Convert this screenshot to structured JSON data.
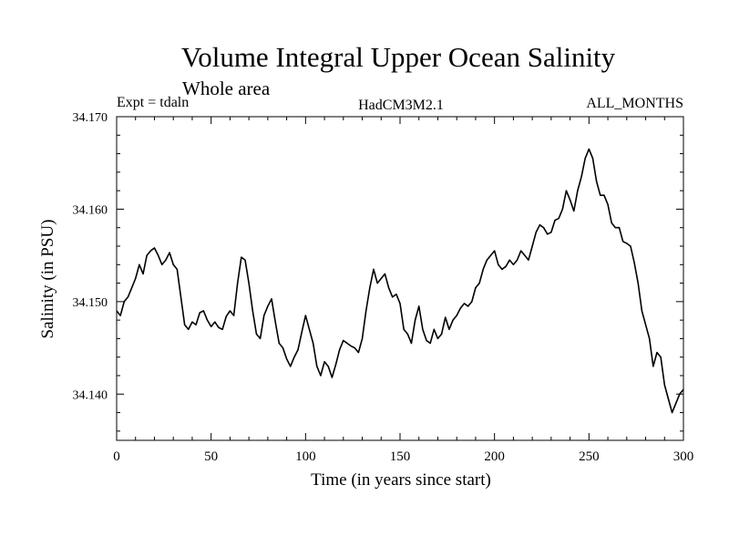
{
  "chart_data": {
    "type": "line",
    "title": "Volume Integral Upper Ocean Salinity",
    "subtitle": "Whole area",
    "header_left": "Expt = tdaln",
    "header_center": "HadCM3M2.1",
    "header_right": "ALL_MONTHS",
    "xlabel": "Time (in years since start)",
    "ylabel": "Salinity (in PSU)",
    "xlim": [
      0,
      300
    ],
    "ylim": [
      34.135,
      34.17
    ],
    "xticks_major": [
      0,
      50,
      100,
      150,
      200,
      250,
      300
    ],
    "xtick_labels": [
      "0",
      "50",
      "100",
      "150",
      "200",
      "250",
      "300"
    ],
    "yticks_major": [
      34.14,
      34.15,
      34.16,
      34.17
    ],
    "ytick_labels": [
      "34.140",
      "34.150",
      "34.160",
      "34.170"
    ],
    "grid": false,
    "series": [
      {
        "name": "Salinity",
        "x": [
          0,
          2,
          4,
          6,
          8,
          10,
          12,
          14,
          16,
          18,
          20,
          22,
          24,
          26,
          28,
          30,
          32,
          34,
          36,
          38,
          40,
          42,
          44,
          46,
          48,
          50,
          52,
          54,
          56,
          58,
          60,
          62,
          64,
          66,
          68,
          70,
          72,
          74,
          76,
          78,
          80,
          82,
          84,
          86,
          88,
          90,
          92,
          94,
          96,
          98,
          100,
          102,
          104,
          106,
          108,
          110,
          112,
          114,
          116,
          118,
          120,
          122,
          124,
          126,
          128,
          130,
          132,
          134,
          136,
          138,
          140,
          142,
          144,
          146,
          148,
          150,
          152,
          154,
          156,
          158,
          160,
          162,
          164,
          166,
          168,
          170,
          172,
          174,
          176,
          178,
          180,
          182,
          184,
          186,
          188,
          190,
          192,
          194,
          196,
          198,
          200,
          202,
          204,
          206,
          208,
          210,
          212,
          214,
          216,
          218,
          220,
          222,
          224,
          226,
          228,
          230,
          232,
          234,
          236,
          238,
          240,
          242,
          244,
          246,
          248,
          250,
          252,
          254,
          256,
          258,
          260,
          262,
          264,
          266,
          268,
          270,
          272,
          274,
          276,
          278,
          280,
          282,
          284,
          286,
          288,
          290,
          292,
          294,
          296,
          298,
          300
        ],
        "values": [
          34.149,
          34.1485,
          34.15,
          34.1505,
          34.1515,
          34.1525,
          34.154,
          34.153,
          34.155,
          34.1555,
          34.1558,
          34.155,
          34.154,
          34.1545,
          34.1553,
          34.154,
          34.1535,
          34.1505,
          34.1475,
          34.147,
          34.1478,
          34.1475,
          34.1488,
          34.149,
          34.148,
          34.1473,
          34.1478,
          34.1472,
          34.147,
          34.1484,
          34.149,
          34.1485,
          34.152,
          34.1548,
          34.1545,
          34.152,
          34.149,
          34.1465,
          34.146,
          34.1485,
          34.1495,
          34.1503,
          34.1478,
          34.1455,
          34.145,
          34.1438,
          34.143,
          34.144,
          34.1448,
          34.1467,
          34.1485,
          34.147,
          34.1455,
          34.143,
          34.142,
          34.1435,
          34.143,
          34.1418,
          34.1432,
          34.1448,
          34.1458,
          34.1455,
          34.1452,
          34.145,
          34.1445,
          34.146,
          34.149,
          34.1515,
          34.1535,
          34.152,
          34.1525,
          34.153,
          34.1515,
          34.1505,
          34.1508,
          34.1498,
          34.147,
          34.1465,
          34.1455,
          34.148,
          34.1495,
          34.147,
          34.1458,
          34.1455,
          34.147,
          34.146,
          34.1465,
          34.1483,
          34.147,
          34.148,
          34.1485,
          34.1493,
          34.1498,
          34.1495,
          34.15,
          34.1515,
          34.152,
          34.1535,
          34.1545,
          34.155,
          34.1555,
          34.154,
          34.1535,
          34.1538,
          34.1545,
          34.154,
          34.1545,
          34.1555,
          34.155,
          34.1545,
          34.156,
          34.1575,
          34.1583,
          34.158,
          34.1573,
          34.1575,
          34.1588,
          34.159,
          34.16,
          34.162,
          34.161,
          34.1598,
          34.162,
          34.1635,
          34.1655,
          34.1665,
          34.1655,
          34.163,
          34.1615,
          34.1615,
          34.1605,
          34.1585,
          34.158,
          34.158,
          34.1565,
          34.1563,
          34.156,
          34.1542,
          34.152,
          34.149,
          34.1475,
          34.146,
          34.143,
          34.1445,
          34.144,
          34.141,
          34.1395,
          34.138,
          34.139,
          34.14,
          34.1405
        ]
      }
    ]
  }
}
